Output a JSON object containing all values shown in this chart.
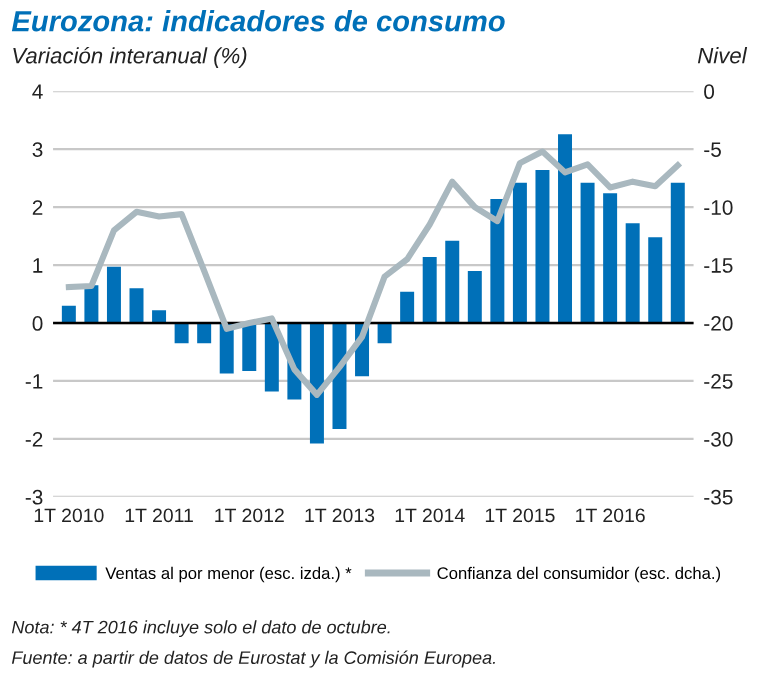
{
  "chart_data": {
    "type": "bar",
    "title": "Eurozona: indicadores de consumo",
    "ylabel": "Variación interanual (%)",
    "y2label": "Nivel",
    "categories": [
      "1T 2010",
      null,
      null,
      null,
      "1T 2011",
      null,
      null,
      null,
      "1T 2012",
      null,
      null,
      null,
      "1T 2013",
      null,
      null,
      null,
      "1T 2014",
      null,
      null,
      null,
      "1T 2015",
      null,
      null,
      null,
      "1T 2016",
      null,
      null,
      null
    ],
    "series": [
      {
        "name": "Ventas al por menor (esc. izda.) *",
        "color": "#0070b8",
        "values": [
          0.3,
          0.65,
          0.97,
          0.6,
          0.22,
          -0.35,
          -0.35,
          -0.87,
          -0.83,
          -1.18,
          -1.32,
          -2.08,
          -1.83,
          -0.92,
          -0.35,
          0.54,
          1.14,
          1.42,
          0.9,
          2.14,
          2.42,
          2.64,
          3.26,
          2.42,
          2.24,
          1.72,
          1.48,
          2.42
        ]
      },
      {
        "name": "Confianza del consumidor (esc. dcha.)",
        "type": "line",
        "axis": "y2",
        "color": "#a9b8bf",
        "values": [
          -16.9,
          -16.8,
          -12,
          -10.4,
          -10.8,
          -10.6,
          -15.5,
          -20.5,
          -20,
          -19.6,
          -24,
          -26.2,
          -23.8,
          -21.2,
          -16,
          -14.5,
          -11.5,
          -7.8,
          -10,
          -11.2,
          -6.2,
          -5.2,
          -7,
          -6.3,
          -8.3,
          -7.8,
          -8.2,
          -6.4
        ]
      }
    ],
    "ylim": [
      -3,
      4
    ],
    "yticks": [
      -3,
      -2,
      -1,
      0,
      1,
      2,
      3,
      4
    ],
    "y2lim": [
      -35,
      0
    ],
    "y2ticks": [
      -35,
      -30,
      -25,
      -20,
      -15,
      -10,
      -5,
      0
    ],
    "grid": "y",
    "legend": "bottom",
    "marker": "none",
    "line_style": "solid",
    "annotations": [
      "Nota: * 4T 2016 incluye solo el dato de octubre.",
      "Fuente: a partir de datos de Eurostat y la Comisión Europea."
    ]
  }
}
